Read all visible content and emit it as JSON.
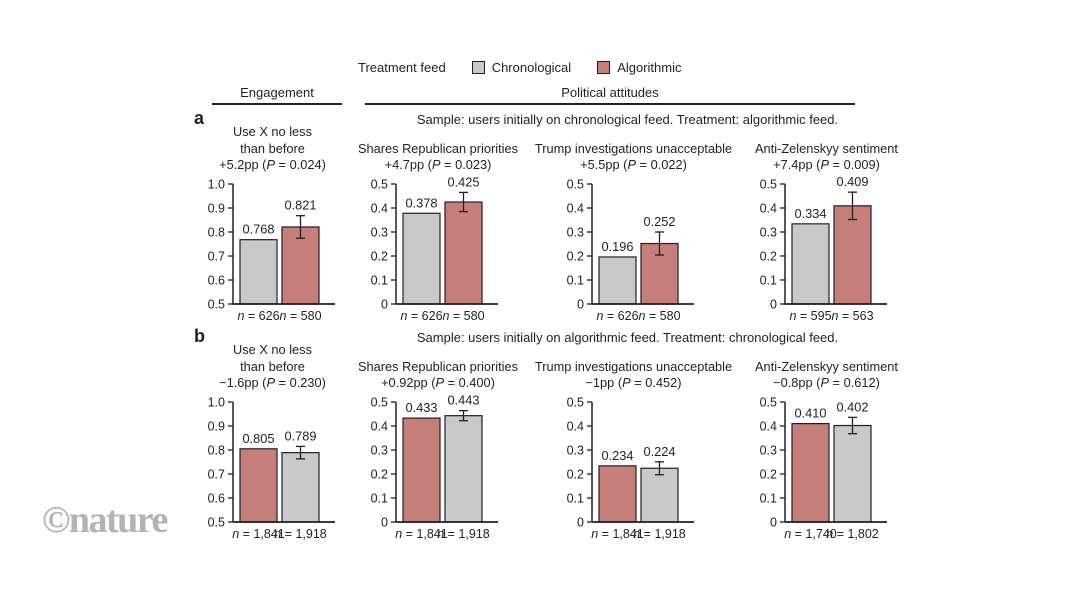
{
  "brand": {
    "text": "©nature"
  },
  "legend": {
    "title": "Treatment feed",
    "items": [
      {
        "label": "Chronological",
        "color_key": "chronological"
      },
      {
        "label": "Algorithmic",
        "color_key": "algorithmic"
      }
    ]
  },
  "section_headers": [
    {
      "label": "Engagement"
    },
    {
      "label": "Political attitudes"
    }
  ],
  "colors": {
    "chronological": "#c9c9ca",
    "algorithmic": "#c67e7b",
    "axis": "#231f20",
    "text": "#231f20",
    "brand_gray": "#b3b3b3"
  },
  "panels": {
    "a": {
      "label": "a",
      "sample_text": "Sample: users initially on chronological feed. Treatment: algorithmic feed."
    },
    "b": {
      "label": "b",
      "sample_text": "Sample: users initially on algorithmic feed. Treatment: chronological feed."
    }
  },
  "chart_data": [
    {
      "type": "bar",
      "panel": "a",
      "title_lines": [
        "Use X no less",
        "than before"
      ],
      "effect": "+5.2pp (P = 0.024)",
      "ylim": [
        0.5,
        1.0
      ],
      "yticks": [
        "0.5",
        "0.6",
        "0.7",
        "0.8",
        "0.9",
        "1.0"
      ],
      "bars": [
        {
          "group": "Chronological",
          "value": 0.768,
          "label": "0.768",
          "n": "n = 626",
          "color_key": "chronological",
          "error": null
        },
        {
          "group": "Algorithmic",
          "value": 0.821,
          "label": "0.821",
          "n": "n = 580",
          "color_key": "algorithmic",
          "error": 0.047
        }
      ]
    },
    {
      "type": "bar",
      "panel": "a",
      "title_lines": [
        "Shares Republican priorities"
      ],
      "effect": "+4.7pp (P = 0.023)",
      "ylim": [
        0,
        0.5
      ],
      "yticks": [
        "0",
        "0.1",
        "0.2",
        "0.3",
        "0.4",
        "0.5"
      ],
      "bars": [
        {
          "group": "Chronological",
          "value": 0.378,
          "label": "0.378",
          "n": "n = 626",
          "color_key": "chronological",
          "error": null
        },
        {
          "group": "Algorithmic",
          "value": 0.425,
          "label": "0.425",
          "n": "n = 580",
          "color_key": "algorithmic",
          "error": 0.04
        }
      ]
    },
    {
      "type": "bar",
      "panel": "a",
      "title_lines": [
        "Trump investigations unacceptable"
      ],
      "effect": "+5.5pp (P = 0.022)",
      "ylim": [
        0,
        0.5
      ],
      "yticks": [
        "0",
        "0.1",
        "0.2",
        "0.3",
        "0.4",
        "0.5"
      ],
      "bars": [
        {
          "group": "Chronological",
          "value": 0.196,
          "label": "0.196",
          "n": "n = 626",
          "color_key": "chronological",
          "error": null
        },
        {
          "group": "Algorithmic",
          "value": 0.252,
          "label": "0.252",
          "n": "n = 580",
          "color_key": "algorithmic",
          "error": 0.048
        }
      ]
    },
    {
      "type": "bar",
      "panel": "a",
      "title_lines": [
        "Anti-Zelenskyy sentiment"
      ],
      "effect": "+7.4pp (P = 0.009)",
      "ylim": [
        0,
        0.5
      ],
      "yticks": [
        "0",
        "0.1",
        "0.2",
        "0.3",
        "0.4",
        "0.5"
      ],
      "bars": [
        {
          "group": "Chronological",
          "value": 0.334,
          "label": "0.334",
          "n": "n = 595",
          "color_key": "chronological",
          "error": null
        },
        {
          "group": "Algorithmic",
          "value": 0.409,
          "label": "0.409",
          "n": "n = 563",
          "color_key": "algorithmic",
          "error": 0.057
        }
      ]
    },
    {
      "type": "bar",
      "panel": "b",
      "title_lines": [
        "Use X no less",
        "than before"
      ],
      "effect": "−1.6pp (P = 0.230)",
      "ylim": [
        0.5,
        1.0
      ],
      "yticks": [
        "0.5",
        "0.6",
        "0.7",
        "0.8",
        "0.9",
        "1.0"
      ],
      "bars": [
        {
          "group": "Algorithmic",
          "value": 0.805,
          "label": "0.805",
          "n": "n = 1,841",
          "color_key": "algorithmic",
          "error": null
        },
        {
          "group": "Chronological",
          "value": 0.789,
          "label": "0.789",
          "n": "n = 1,918",
          "color_key": "chronological",
          "error": 0.026
        }
      ]
    },
    {
      "type": "bar",
      "panel": "b",
      "title_lines": [
        "Shares Republican priorities"
      ],
      "effect": "+0.92pp (P = 0.400)",
      "ylim": [
        0,
        0.5
      ],
      "yticks": [
        "0",
        "0.1",
        "0.2",
        "0.3",
        "0.4",
        "0.5"
      ],
      "bars": [
        {
          "group": "Algorithmic",
          "value": 0.433,
          "label": "0.433",
          "n": "n = 1,841",
          "color_key": "algorithmic",
          "error": null
        },
        {
          "group": "Chronological",
          "value": 0.443,
          "label": "0.443",
          "n": "n = 1,918",
          "color_key": "chronological",
          "error": 0.021
        }
      ]
    },
    {
      "type": "bar",
      "panel": "b",
      "title_lines": [
        "Trump investigations unacceptable"
      ],
      "effect": "−1pp (P = 0.452)",
      "ylim": [
        0,
        0.5
      ],
      "yticks": [
        "0",
        "0.1",
        "0.2",
        "0.3",
        "0.4",
        "0.5"
      ],
      "bars": [
        {
          "group": "Algorithmic",
          "value": 0.234,
          "label": "0.234",
          "n": "n = 1,841",
          "color_key": "algorithmic",
          "error": null
        },
        {
          "group": "Chronological",
          "value": 0.224,
          "label": "0.224",
          "n": "n = 1,918",
          "color_key": "chronological",
          "error": 0.027
        }
      ]
    },
    {
      "type": "bar",
      "panel": "b",
      "title_lines": [
        "Anti-Zelenskyy sentiment"
      ],
      "effect": "−0.8pp (P = 0.612)",
      "ylim": [
        0,
        0.5
      ],
      "yticks": [
        "0",
        "0.1",
        "0.2",
        "0.3",
        "0.4",
        "0.5"
      ],
      "bars": [
        {
          "group": "Algorithmic",
          "value": 0.41,
          "label": "0.410",
          "n": "n = 1,740",
          "color_key": "algorithmic",
          "error": null
        },
        {
          "group": "Chronological",
          "value": 0.402,
          "label": "0.402",
          "n": "n = 1,802",
          "color_key": "chronological",
          "error": 0.034
        }
      ]
    }
  ]
}
